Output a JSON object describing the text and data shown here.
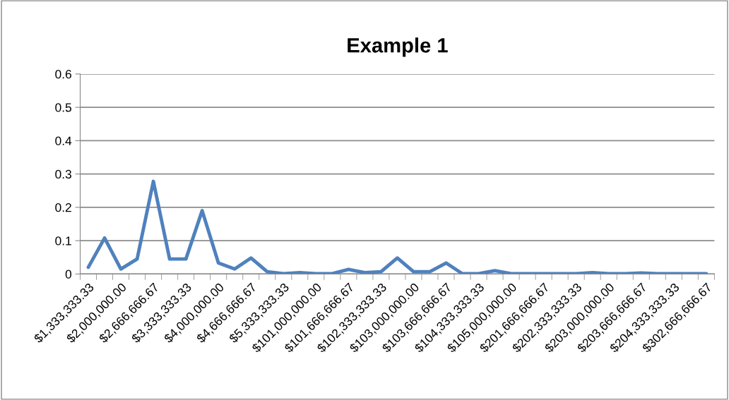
{
  "chart_data": {
    "type": "line",
    "title": "Example 1",
    "categories": [
      "$1,333,333.33",
      null,
      "$2,000,000.00",
      null,
      "$2,666,666.67",
      null,
      "$3,333,333.33",
      null,
      "$4,000,000.00",
      null,
      "$4,666,666.67",
      null,
      "$5,333,333.33",
      null,
      "$101,000,000.00",
      null,
      "$101,666,666.67",
      null,
      "$102,333,333.33",
      null,
      "$103,000,000.00",
      null,
      "$103,666,666.67",
      null,
      "$104,333,333.33",
      null,
      "$105,000,000.00",
      null,
      "$201,666,666.67",
      null,
      "$202,333,333.33",
      null,
      "$203,000,000.00",
      null,
      "$203,666,666.67",
      null,
      "$204,333,333.33",
      null,
      "$302,666,666.67"
    ],
    "series": [
      {
        "color": "#4f81bd",
        "values": [
          0.02,
          0.108,
          0.015,
          0.045,
          0.278,
          0.045,
          0.045,
          0.19,
          0.033,
          0.015,
          0.048,
          0.007,
          0.001,
          0.004,
          0.001,
          0.001,
          0.014,
          0.004,
          0.007,
          0.048,
          0.007,
          0.007,
          0.033,
          0.001,
          0.001,
          0.01,
          0.001,
          0.001,
          0.001,
          0.001,
          0.001,
          0.004,
          0.001,
          0.001,
          0.003,
          0.001,
          0.001,
          0.001,
          0.001
        ]
      }
    ],
    "ylim": [
      0,
      0.6
    ],
    "yticks": [
      {
        "value": 0,
        "label": "0"
      },
      0.1,
      0.2,
      0.3,
      0.4,
      0.5,
      0.6
    ],
    "grid": "y",
    "marker": "none",
    "line_style": "solid"
  }
}
